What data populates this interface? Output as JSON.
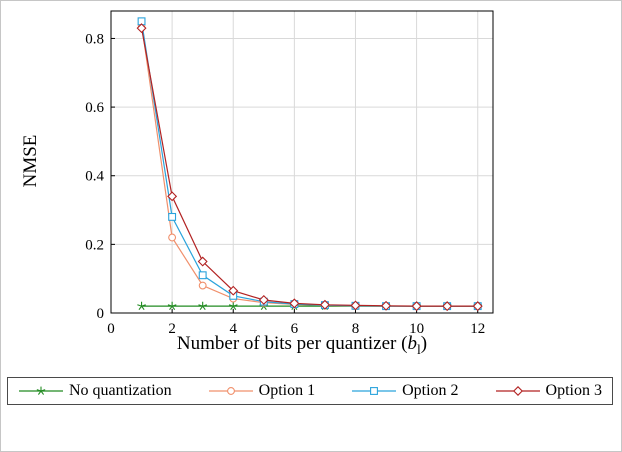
{
  "chart_data": {
    "type": "line",
    "title": "",
    "xlabel": "Number of bits per quantizer (b_l)",
    "xlabel_parts": {
      "text": "Number of bits per quantizer (",
      "var": "b",
      "sub": "l",
      "close": ")"
    },
    "ylabel": "NMSE",
    "xlim": [
      0,
      12.5
    ],
    "ylim": [
      0,
      0.88
    ],
    "xticks": [
      0,
      2,
      4,
      6,
      8,
      10,
      12
    ],
    "yticks": [
      0,
      0.2,
      0.4,
      0.6,
      0.8
    ],
    "grid": true,
    "legend_position": "bottom",
    "x": [
      1,
      2,
      3,
      4,
      5,
      6,
      7,
      8,
      9,
      10,
      11,
      12
    ],
    "series": [
      {
        "name": "No quantization",
        "marker": "star",
        "color": "#228b22",
        "values": [
          0.02,
          0.02,
          0.02,
          0.02,
          0.02,
          0.02,
          0.02,
          0.02,
          0.02,
          0.02,
          0.02,
          0.02
        ]
      },
      {
        "name": "Option 1",
        "marker": "circle",
        "color": "#f0906c",
        "values": [
          0.84,
          0.22,
          0.08,
          0.042,
          0.03,
          0.025,
          0.022,
          0.021,
          0.02,
          0.02,
          0.02,
          0.02
        ]
      },
      {
        "name": "Option 2",
        "marker": "square",
        "color": "#2aa3dc",
        "values": [
          0.85,
          0.28,
          0.11,
          0.05,
          0.033,
          0.026,
          0.023,
          0.021,
          0.02,
          0.02,
          0.02,
          0.02
        ]
      },
      {
        "name": "Option 3",
        "marker": "diamond",
        "color": "#b22222",
        "values": [
          0.83,
          0.34,
          0.15,
          0.065,
          0.038,
          0.028,
          0.024,
          0.022,
          0.021,
          0.02,
          0.02,
          0.02
        ]
      }
    ]
  }
}
